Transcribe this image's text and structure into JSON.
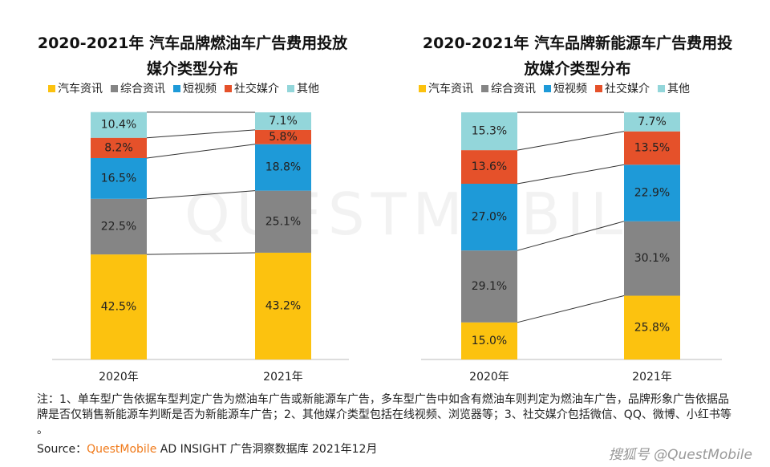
{
  "chart_data": [
    {
      "type": "stacked-bar",
      "title": "2020-2021年 汽车品牌燃油车广告费用投放媒介类型分布",
      "categories": [
        "2020年",
        "2021年"
      ],
      "ylim": [
        0,
        100
      ],
      "series": [
        {
          "name": "汽车资讯",
          "color": "#fcc20f",
          "values": [
            42.5,
            43.2
          ],
          "value_labels": [
            "42.5%",
            "43.2%"
          ]
        },
        {
          "name": "综合资讯",
          "color": "#858585",
          "values": [
            22.5,
            25.1
          ],
          "value_labels": [
            "22.5%",
            "25.1%"
          ]
        },
        {
          "name": "短视频",
          "color": "#1e9ad8",
          "values": [
            16.5,
            18.8
          ],
          "value_labels": [
            "16.5%",
            "18.8%"
          ]
        },
        {
          "name": "社交媒介",
          "color": "#e5512a",
          "values": [
            8.2,
            5.8
          ],
          "value_labels": [
            "8.2%",
            "5.8%"
          ]
        },
        {
          "name": "其他",
          "color": "#93d6da",
          "values": [
            10.4,
            7.1
          ],
          "value_labels": [
            "10.4%",
            "7.1%"
          ]
        }
      ]
    },
    {
      "type": "stacked-bar",
      "title": "2020-2021年 汽车品牌新能源车广告费用投放媒介类型分布",
      "categories": [
        "2020年",
        "2021年"
      ],
      "ylim": [
        0,
        100
      ],
      "series": [
        {
          "name": "汽车资讯",
          "color": "#fcc20f",
          "values": [
            15.0,
            25.8
          ],
          "value_labels": [
            "15.0%",
            "25.8%"
          ]
        },
        {
          "name": "综合资讯",
          "color": "#858585",
          "values": [
            29.1,
            30.1
          ],
          "value_labels": [
            "29.1%",
            "30.1%"
          ]
        },
        {
          "name": "短视频",
          "color": "#1e9ad8",
          "values": [
            27.0,
            22.9
          ],
          "value_labels": [
            "27.0%",
            "22.9%"
          ]
        },
        {
          "name": "社交媒介",
          "color": "#e5512a",
          "values": [
            13.6,
            13.5
          ],
          "value_labels": [
            "13.6%",
            "13.5%"
          ]
        },
        {
          "name": "其他",
          "color": "#93d6da",
          "values": [
            15.3,
            7.7
          ],
          "value_labels": [
            "15.3%",
            "7.7%"
          ]
        }
      ]
    }
  ],
  "note": "注：1、单车型广告依据车型判定广告为燃油车广告或新能源车广告，多车型广告中如含有燃油车则判定为燃油车广告，品牌形象广告依据品牌是否仅销售新能源车判断是否为新能源车广告；2、其他媒介类型包括在线视频、浏览器等；3、社交媒介包括微信、QQ、微博、小红书等 。",
  "source_label": "Source：",
  "source_brand": "QuestMobile",
  "source_text": "AD INSIGHT 广告洞察数据库 2021年12月",
  "watermark": "QUESTMOBILE",
  "footer_brand": "搜狐号 @QuestMobile"
}
